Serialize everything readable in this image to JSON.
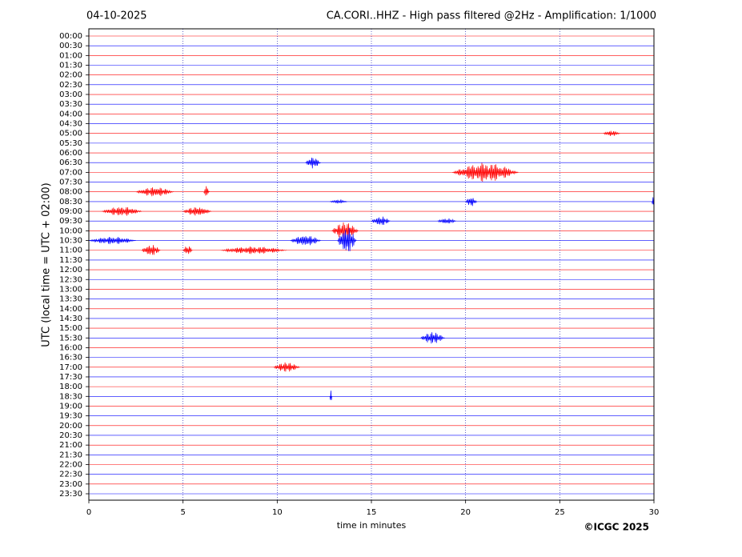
{
  "chart_data": {
    "type": "helicorder",
    "title_left": "04-10-2025",
    "title": "CA.CORI..HHZ - High pass filtered @2Hz - Amplification: 1/1000",
    "y_label": "UTC (local time = UTC + 02:00)",
    "x_label": "time in minutes",
    "credit": "©ICGC 2025",
    "colors": [
      "#ff0000",
      "#0000ff"
    ],
    "categories": [
      "00:00",
      "00:30",
      "01:00",
      "01:30",
      "02:00",
      "02:30",
      "03:00",
      "03:30",
      "04:00",
      "04:30",
      "05:00",
      "05:30",
      "06:00",
      "06:30",
      "07:00",
      "07:30",
      "08:00",
      "08:30",
      "09:00",
      "09:30",
      "10:00",
      "10:30",
      "11:00",
      "11:30",
      "12:00",
      "12:30",
      "13:00",
      "13:30",
      "14:00",
      "14:30",
      "15:00",
      "15:30",
      "16:00",
      "16:30",
      "17:00",
      "17:30",
      "18:00",
      "18:30",
      "19:00",
      "19:30",
      "20:00",
      "20:30",
      "21:00",
      "21:30",
      "22:00",
      "22:30",
      "23:00",
      "23:30"
    ],
    "xlim": [
      0,
      30
    ],
    "xticks": [
      0,
      5,
      10,
      15,
      20,
      25,
      30
    ],
    "grid": true,
    "bursts": [
      {
        "row": 10,
        "x": [
          27.3,
          28.2
        ],
        "amplitude": 0.15
      },
      {
        "row": 13,
        "x": [
          11.5,
          12.3
        ],
        "amplitude": 0.3
      },
      {
        "row": 14,
        "x": [
          19.3,
          22.8
        ],
        "amplitude": 0.5
      },
      {
        "row": 16,
        "x": [
          2.5,
          4.5
        ],
        "amplitude": 0.25
      },
      {
        "row": 16,
        "x": [
          6.1,
          6.4
        ],
        "amplitude": 0.3
      },
      {
        "row": 17,
        "x": [
          12.8,
          13.7
        ],
        "amplitude": 0.1
      },
      {
        "row": 17,
        "x": [
          20,
          20.6
        ],
        "amplitude": 0.25
      },
      {
        "row": 17,
        "x": [
          29.9,
          30
        ],
        "amplitude": 0.3
      },
      {
        "row": 18,
        "x": [
          0.7,
          2.8
        ],
        "amplitude": 0.25
      },
      {
        "row": 18,
        "x": [
          5,
          6.5
        ],
        "amplitude": 0.25
      },
      {
        "row": 19,
        "x": [
          15,
          16
        ],
        "amplitude": 0.25
      },
      {
        "row": 19,
        "x": [
          18.5,
          19.5
        ],
        "amplitude": 0.15
      },
      {
        "row": 20,
        "x": [
          12.9,
          14.3
        ],
        "amplitude": 0.45
      },
      {
        "row": 21,
        "x": [
          0,
          2.5
        ],
        "amplitude": 0.2
      },
      {
        "row": 21,
        "x": [
          10.7,
          12.3
        ],
        "amplitude": 0.3
      },
      {
        "row": 21,
        "x": [
          13.2,
          14.2
        ],
        "amplitude": 0.7
      },
      {
        "row": 22,
        "x": [
          2.8,
          3.8
        ],
        "amplitude": 0.3
      },
      {
        "row": 22,
        "x": [
          5,
          5.5
        ],
        "amplitude": 0.25
      },
      {
        "row": 22,
        "x": [
          7,
          10.5
        ],
        "amplitude": 0.2
      },
      {
        "row": 31,
        "x": [
          17.6,
          18.9
        ],
        "amplitude": 0.3
      },
      {
        "row": 34,
        "x": [
          9.8,
          11.2
        ],
        "amplitude": 0.25
      },
      {
        "row": 37,
        "x": [
          12.8,
          12.9
        ],
        "amplitude": 0.4
      }
    ]
  }
}
